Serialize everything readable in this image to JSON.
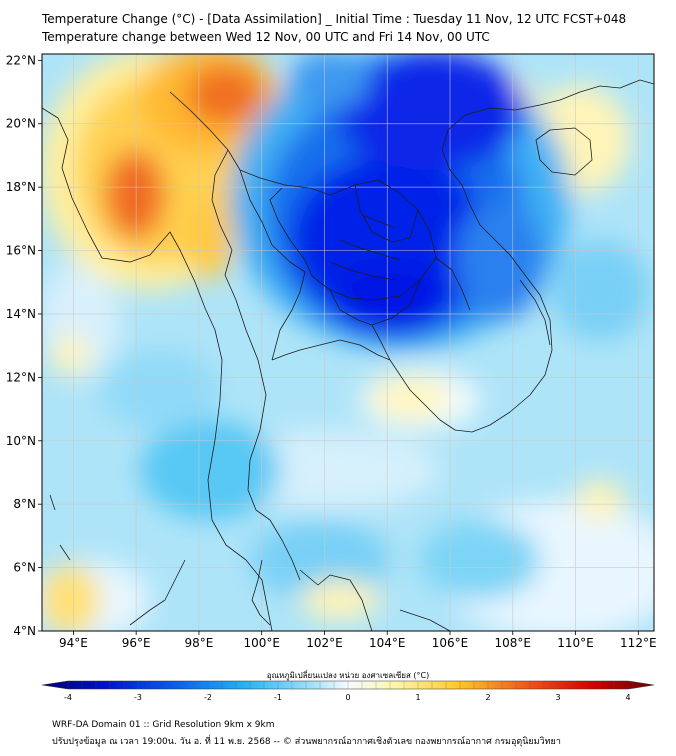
{
  "title_line1": "Temperature Change (°C) - [Data Assimilation] _ Initial Time : Tuesday 11 Nov, 12 UTC FCST+048",
  "title_line2": "Temperature change between Wed 12 Nov, 00 UTC and Fri 14 Nov, 00 UTC",
  "lat_labels": [
    "22°N",
    "20°N",
    "18°N",
    "16°N",
    "14°N",
    "12°N",
    "10°N",
    "8°N",
    "6°N",
    "4°N"
  ],
  "lon_labels": [
    "94°E",
    "96°E",
    "98°E",
    "100°E",
    "102°E",
    "104°E",
    "106°E",
    "108°E",
    "110°E",
    "112°E"
  ],
  "colorbar": {
    "label": "อุณหภูมิเปลี่ยนแปลง หน่วย องศาเซลเซียส (°C)",
    "ticks": [
      "-4",
      "-3",
      "-2",
      "-1",
      "0",
      "1",
      "2",
      "3",
      "4"
    ],
    "min": -4,
    "max": 4
  },
  "footer_line1": "WRF-DA Domain 01 :: Grid Resolution 9km x 9km",
  "footer_line2": "ปรับปรุงข้อมูล ณ เวลา 19:00น. วัน อ. ที่ 11 พ.ย. 2568 -- © ส่วนพยากรณ์อากาศเชิงตัวเลข กองพยากรณ์อากาศ กรมอุตุนิยมวิทยา",
  "colors": {
    "cold_strong": "#0018e8",
    "cold": "#20a8f0",
    "cool": "#a8e4f8",
    "neutral": "#e6f6ff",
    "warm_light": "#fff8c0",
    "warm": "#ffc830",
    "hot": "#f05020",
    "coastline": "#1e1e1e"
  }
}
